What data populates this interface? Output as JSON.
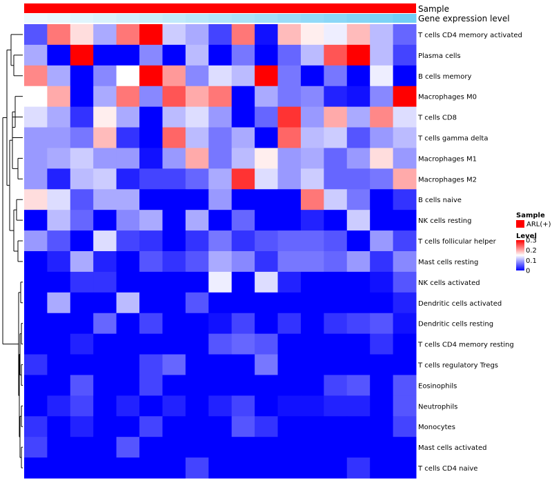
{
  "chart_data": {
    "type": "heatmap",
    "annotations": [
      {
        "name": "Sample",
        "label": "Sample"
      },
      {
        "name": "Gene expression level",
        "label": "Gene expression level"
      }
    ],
    "rows": [
      "T cells CD4 memory activated",
      "Plasma cells",
      "B cells memory",
      "Macrophages M0",
      "T cells CD8",
      "T cells gamma delta",
      "Macrophages M1",
      "Macrophages M2",
      "B cells naive",
      "NK cells resting",
      "T cells follicular helper",
      "Mast cells resting",
      "NK cells activated",
      "Dendritic cells activated",
      "Dendritic cells resting",
      "T cells CD4 memory resting",
      "T cells regulatory  Tregs",
      "Eosinophils",
      "Neutrophils",
      "Monocytes",
      "Mast cells activated",
      "T cells CD4 naive"
    ],
    "values": [
      [
        0.05,
        0.23,
        0.17,
        0.1,
        0.23,
        0.3,
        0.12,
        0.1,
        0.04,
        0.23,
        0.01,
        0.19,
        0.16,
        0.14,
        0.19,
        0.11,
        0.06
      ],
      [
        0.1,
        0.0,
        0.3,
        0.0,
        0.0,
        0.08,
        0.0,
        0.11,
        0.0,
        0.07,
        0.0,
        0.06,
        0.11,
        0.25,
        0.3,
        0.11,
        0.04
      ],
      [
        0.22,
        0.1,
        0.0,
        0.08,
        0.15,
        0.3,
        0.21,
        0.08,
        0.13,
        0.11,
        0.3,
        0.07,
        0.0,
        0.07,
        0.0,
        0.14,
        0.0
      ],
      [
        0.15,
        0.2,
        0.0,
        0.1,
        0.23,
        0.08,
        0.25,
        0.2,
        0.23,
        0.0,
        0.1,
        0.07,
        0.08,
        0.02,
        0.01,
        0.08,
        0.3
      ],
      [
        0.13,
        0.1,
        0.03,
        0.16,
        0.1,
        0.0,
        0.11,
        0.13,
        0.09,
        0.0,
        0.06,
        0.27,
        0.09,
        0.2,
        0.1,
        0.22,
        0.13
      ],
      [
        0.09,
        0.09,
        0.07,
        0.19,
        0.03,
        0.0,
        0.24,
        0.11,
        0.07,
        0.1,
        0.0,
        0.24,
        0.11,
        0.12,
        0.05,
        0.09,
        0.11
      ],
      [
        0.09,
        0.1,
        0.12,
        0.09,
        0.09,
        0.01,
        0.09,
        0.2,
        0.07,
        0.11,
        0.16,
        0.09,
        0.1,
        0.06,
        0.09,
        0.17,
        0.09
      ],
      [
        0.09,
        0.02,
        0.11,
        0.12,
        0.02,
        0.04,
        0.04,
        0.06,
        0.1,
        0.27,
        0.13,
        0.09,
        0.12,
        0.06,
        0.06,
        0.07,
        0.2
      ],
      [
        0.17,
        0.13,
        0.05,
        0.1,
        0.1,
        0.0,
        0.0,
        0.0,
        0.09,
        0.0,
        0.0,
        0.0,
        0.23,
        0.12,
        0.07,
        0.0,
        0.03
      ],
      [
        0.0,
        0.11,
        0.06,
        0.0,
        0.08,
        0.1,
        0.0,
        0.1,
        0.0,
        0.06,
        0.0,
        0.0,
        0.02,
        0.0,
        0.12,
        0.0,
        0.0
      ],
      [
        0.09,
        0.05,
        0.0,
        0.13,
        0.04,
        0.03,
        0.0,
        0.03,
        0.07,
        0.03,
        0.05,
        0.06,
        0.06,
        0.05,
        0.0,
        0.09,
        0.04
      ],
      [
        0.0,
        0.02,
        0.1,
        0.02,
        0.0,
        0.05,
        0.03,
        0.05,
        0.1,
        0.08,
        0.03,
        0.07,
        0.07,
        0.06,
        0.09,
        0.03,
        0.08
      ],
      [
        0.0,
        0.0,
        0.03,
        0.03,
        0.0,
        0.0,
        0.0,
        0.0,
        0.14,
        0.0,
        0.13,
        0.02,
        0.0,
        0.0,
        0.0,
        0.01,
        0.05
      ],
      [
        0.0,
        0.1,
        0.0,
        0.0,
        0.11,
        0.0,
        0.0,
        0.05,
        0.0,
        0.0,
        0.0,
        0.0,
        0.0,
        0.0,
        0.0,
        0.0,
        0.02
      ],
      [
        0.0,
        0.0,
        0.0,
        0.06,
        0.0,
        0.04,
        0.0,
        0.0,
        0.01,
        0.04,
        0.0,
        0.03,
        0.0,
        0.03,
        0.04,
        0.05,
        0.01
      ],
      [
        0.0,
        0.0,
        0.02,
        0.0,
        0.0,
        0.0,
        0.0,
        0.0,
        0.05,
        0.06,
        0.05,
        0.0,
        0.0,
        0.0,
        0.0,
        0.03,
        0.0
      ],
      [
        0.03,
        0.0,
        0.0,
        0.0,
        0.0,
        0.04,
        0.06,
        0.0,
        0.0,
        0.0,
        0.07,
        0.0,
        0.0,
        0.0,
        0.0,
        0.0,
        0.0
      ],
      [
        0.0,
        0.0,
        0.05,
        0.0,
        0.0,
        0.04,
        0.0,
        0.0,
        0.0,
        0.0,
        0.0,
        0.0,
        0.0,
        0.04,
        0.05,
        0.0,
        0.05
      ],
      [
        0.0,
        0.02,
        0.04,
        0.0,
        0.02,
        0.0,
        0.02,
        0.0,
        0.02,
        0.04,
        0.0,
        0.01,
        0.01,
        0.02,
        0.02,
        0.0,
        0.05
      ],
      [
        0.03,
        0.0,
        0.02,
        0.0,
        0.0,
        0.04,
        0.0,
        0.0,
        0.0,
        0.05,
        0.03,
        0.0,
        0.0,
        0.0,
        0.0,
        0.0,
        0.04
      ],
      [
        0.04,
        0.0,
        0.0,
        0.0,
        0.05,
        0.0,
        0.0,
        0.0,
        0.0,
        0.0,
        0.0,
        0.0,
        0.0,
        0.0,
        0.0,
        0.0,
        0.0
      ],
      [
        0.0,
        0.0,
        0.0,
        0.0,
        0.0,
        0.0,
        0.0,
        0.04,
        0.0,
        0.0,
        0.0,
        0.0,
        0.0,
        0.0,
        0.03,
        0.0,
        0.0
      ]
    ],
    "column_gene_level": [
      0.02,
      0.06,
      0.12,
      0.18,
      0.24,
      0.3,
      0.36,
      0.42,
      0.48,
      0.54,
      0.6,
      0.66,
      0.72,
      0.78,
      0.84,
      0.9,
      0.98
    ],
    "legend": {
      "sample_title": "Sample",
      "sample_entry": "ARL(+)",
      "level_title": "Level",
      "level_ticks": [
        "0.3",
        "0.2",
        "0.1",
        "0"
      ],
      "level_range": [
        0,
        0.3
      ]
    },
    "colors": {
      "low": "#0000ff",
      "mid": "#ffffff",
      "high": "#ff0000",
      "sample": "#ff0000",
      "gene_low": "#f0fafe",
      "gene_high": "#6ecdf5",
      "dendrogram": "#000000"
    }
  }
}
